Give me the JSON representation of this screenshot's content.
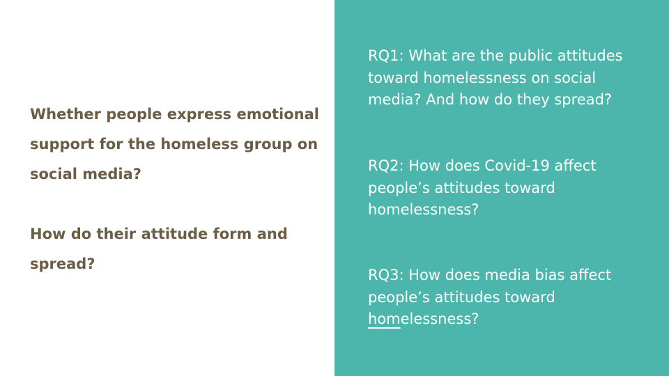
{
  "left": {
    "question1": "Whether people express emotional support for the homeless group on social media?",
    "question2": "How do their attitude form and spread?"
  },
  "right": {
    "rq1": "RQ1: What are the public attitudes toward homelessness on social media? And how do they spread?",
    "rq2": "RQ2: How does Covid-19 affect people’s attitudes toward homelessness?",
    "rq3_prefix": "RQ3: How does media bias affect people’s attitudes toward ",
    "rq3_underlined": "hom",
    "rq3_suffix": "elessness?"
  },
  "colors": {
    "panel_accent": "#4db6ac",
    "question_text": "#6b5d45",
    "rq_text": "#ffffff"
  }
}
